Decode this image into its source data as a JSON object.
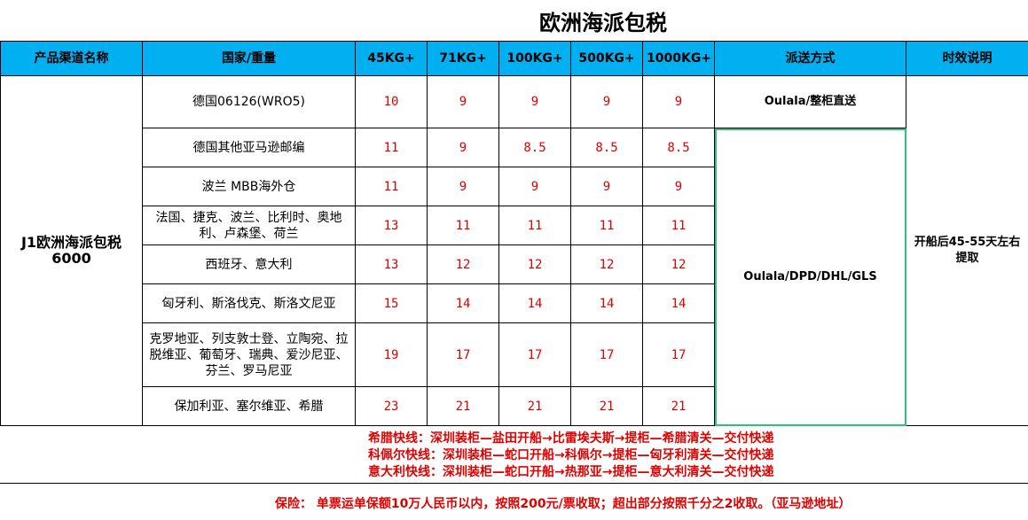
{
  "title": "欧洲海派包税",
  "headers": [
    "产品渠道名称",
    "国家/重量",
    "45KG+",
    "71KG+",
    "100KG+",
    "500KG+",
    "1000KG+",
    "派送方式",
    "时效说明"
  ],
  "channel": {
    "name": "J1欧洲海派包税",
    "code": "6000"
  },
  "rows": [
    {
      "country": "德国06126(WRO5)",
      "prices": [
        "10",
        "9",
        "9",
        "9",
        "9"
      ]
    },
    {
      "country": "德国其他亚马逊邮编",
      "prices": [
        "11",
        "9",
        "8.5",
        "8.5",
        "8.5"
      ]
    },
    {
      "country": "波兰 MBB海外仓",
      "prices": [
        "11",
        "9",
        "9",
        "9",
        "9"
      ]
    },
    {
      "country": "法国、捷克、波兰、比利时、奥地利、卢森堡、荷兰",
      "prices": [
        "13",
        "11",
        "11",
        "11",
        "11"
      ]
    },
    {
      "country": "西班牙、意大利",
      "prices": [
        "13",
        "12",
        "12",
        "12",
        "12"
      ]
    },
    {
      "country": "匈牙利、斯洛伐克、斯洛文尼亚",
      "prices": [
        "15",
        "14",
        "14",
        "14",
        "14"
      ]
    },
    {
      "country": "克罗地亚、列支敦士登、立陶宛、拉脱维亚、葡萄牙、瑞典、爱沙尼亚、芬兰、罗马尼亚",
      "prices": [
        "19",
        "17",
        "17",
        "17",
        "17"
      ]
    },
    {
      "country": "保加利亚、塞尔维亚、希腊",
      "prices": [
        "23",
        "21",
        "21",
        "21",
        "21"
      ]
    }
  ],
  "delivery": {
    "first": "Oulala/整柜直送",
    "rest": "Oulala/DPD/DHL/GLS"
  },
  "timing": "开船后45-55天左右提取",
  "notes": [
    "希腊快线：深圳装柜—盐田开船→比雷埃夫斯→提柜—希腊清关—交付快递",
    "科佩尔快线：深圳装柜—蛇口开船→科佩尔→提柜—匈牙利清关—交付快递",
    "意大利快线：深圳装柜—蛇口开船→热那亚→提柜—意大利清关—交付快递"
  ],
  "insurance": "保险：  单票运单保额10万人民币以内，按照200元/票收取；超出部分按照千分之2收取。（亚马逊地址）",
  "colors": {
    "header": "#00b0f0",
    "price": "#e00000",
    "highlight": "#2fbf7f"
  }
}
